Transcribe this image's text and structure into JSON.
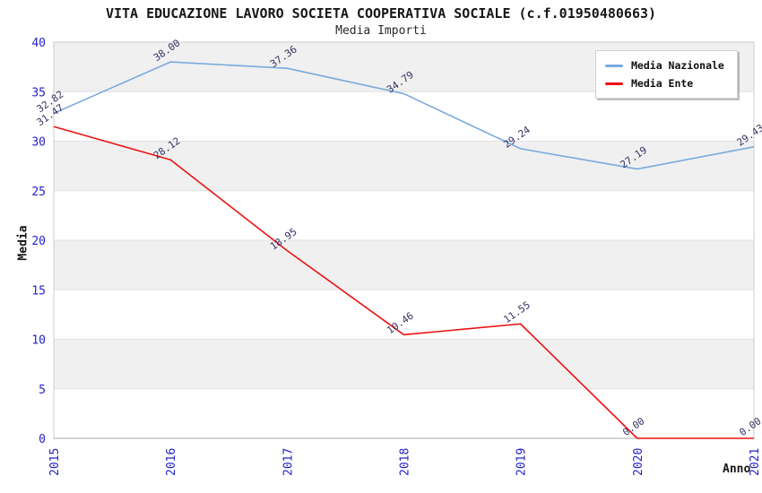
{
  "chart_data": {
    "type": "line",
    "title": "VITA EDUCAZIONE LAVORO SOCIETA COOPERATIVA SOCIALE (c.f.01950480663)",
    "subtitle": "Media Importi",
    "xlabel": "Anno",
    "ylabel": "Media",
    "categories": [
      "2015",
      "2016",
      "2017",
      "2018",
      "2019",
      "2020",
      "2021"
    ],
    "series": [
      {
        "name": "Media Nazionale",
        "color": "#79aade",
        "values": [
          32.82,
          38.0,
          37.36,
          34.79,
          29.24,
          27.19,
          29.43
        ]
      },
      {
        "name": "Media Ente",
        "color": "#ee1111",
        "values": [
          31.47,
          28.12,
          18.95,
          10.46,
          11.55,
          0.0,
          0.0
        ]
      }
    ],
    "ylim": [
      0,
      40
    ],
    "ytick_step": 5,
    "yticks": [
      0,
      5,
      10,
      15,
      20,
      25,
      30,
      35,
      40
    ],
    "point_label_format": "two-decimals",
    "legend_position": "top-right",
    "grid": "horizontal-alternating-bands",
    "colors": {
      "tick_label": "#2222cc",
      "point_label": "#333366",
      "band": "#f0f0f0",
      "gridline": "#e2e2e2",
      "frame": "#cccccc",
      "axis": "#aaaaaa"
    }
  }
}
